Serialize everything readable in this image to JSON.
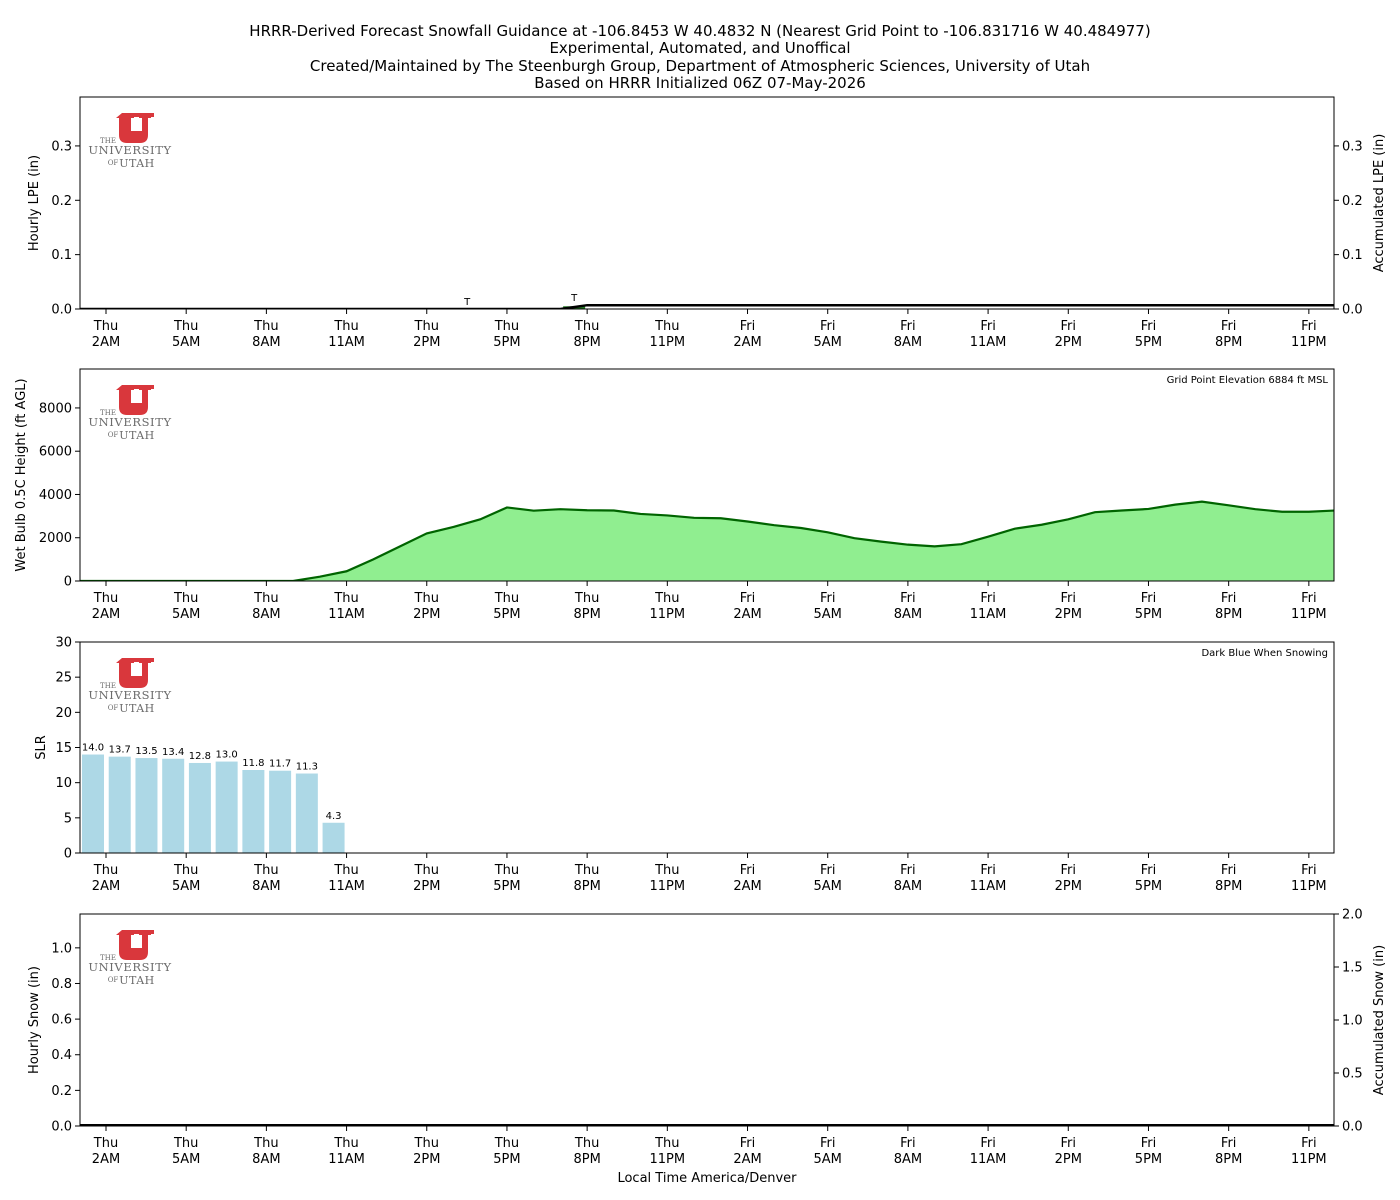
{
  "title": {
    "lines": [
      "HRRR-Derived Forecast Snowfall Guidance at -106.8453 W 40.4832 N (Nearest Grid Point to -106.831716 W 40.484977)",
      "Experimental, Automated, and Unoffical",
      "Created/Maintained by The Steenburgh Group, Department of Atmospheric Sciences, University of Utah",
      "Based on HRRR Initialized 06Z 07-May-2026"
    ]
  },
  "logo": {
    "the": "THE",
    "university": "UNIVERSITY",
    "of": "OF",
    "utah": "UTAH",
    "color": "#d9373c"
  },
  "xlabel": "Local Time America/Denver",
  "time_ticks": [
    {
      "day": "Thu",
      "time": "2AM"
    },
    {
      "day": "Thu",
      "time": "5AM"
    },
    {
      "day": "Thu",
      "time": "8AM"
    },
    {
      "day": "Thu",
      "time": "11AM"
    },
    {
      "day": "Thu",
      "time": "2PM"
    },
    {
      "day": "Thu",
      "time": "5PM"
    },
    {
      "day": "Thu",
      "time": "8PM"
    },
    {
      "day": "Thu",
      "time": "11PM"
    },
    {
      "day": "Fri",
      "time": "2AM"
    },
    {
      "day": "Fri",
      "time": "5AM"
    },
    {
      "day": "Fri",
      "time": "8AM"
    },
    {
      "day": "Fri",
      "time": "11AM"
    },
    {
      "day": "Fri",
      "time": "2PM"
    },
    {
      "day": "Fri",
      "time": "5PM"
    },
    {
      "day": "Fri",
      "time": "8PM"
    },
    {
      "day": "Fri",
      "time": "11PM"
    }
  ],
  "chart_data": [
    {
      "type": "bar",
      "ylabel": "Hourly LPE (in)",
      "y2label": "Accumulated LPE (in)",
      "ylim": [
        0,
        0.39
      ],
      "y2lim": [
        0,
        0.39
      ],
      "yticks": [
        "0.0",
        "0.1",
        "0.2",
        "0.3"
      ],
      "y2ticks": [
        "0.0",
        "0.1",
        "0.2",
        "0.3"
      ],
      "trace_markers": [
        {
          "hour": 14,
          "label": "T"
        },
        {
          "hour": 18,
          "label": "T"
        }
      ],
      "hourly_bar": {
        "hour": 18,
        "value": 0.005,
        "color": "#1f7a1f"
      },
      "accumulated": {
        "hours": [
          0,
          17,
          18,
          47
        ],
        "values": [
          0.0,
          0.0,
          0.007,
          0.007
        ],
        "color": "#000000"
      }
    },
    {
      "type": "area",
      "ylabel": "Wet Bulb 0.5C Height (ft AGL)",
      "ylim": [
        0,
        9800
      ],
      "yticks": [
        "0",
        "2000",
        "4000",
        "6000",
        "8000"
      ],
      "note": "Grid Point Elevation 6884 ft MSL",
      "fill_color": "#90ee90",
      "line_color": "#006400",
      "values": [
        0,
        0,
        0,
        0,
        0,
        0,
        0,
        0,
        200,
        450,
        1000,
        1600,
        2200,
        2500,
        2850,
        3400,
        3250,
        3320,
        3270,
        3260,
        3100,
        3030,
        2920,
        2900,
        2750,
        2580,
        2450,
        2250,
        1980,
        1820,
        1680,
        1600,
        1700,
        2050,
        2420,
        2600,
        2850,
        3180,
        3260,
        3330,
        3530,
        3670,
        3500,
        3320,
        3200,
        3200,
        3260,
        3200
      ]
    },
    {
      "type": "bar",
      "ylabel": "SLR",
      "ylim": [
        0,
        30
      ],
      "yticks": [
        "0",
        "5",
        "10",
        "15",
        "20",
        "25",
        "30"
      ],
      "note": "Dark Blue When Snowing",
      "bar_color": "#add8e6",
      "bars": [
        {
          "hour": 0,
          "value": 14.0,
          "label": "14.0"
        },
        {
          "hour": 1,
          "value": 13.7,
          "label": "13.7"
        },
        {
          "hour": 2,
          "value": 13.5,
          "label": "13.5"
        },
        {
          "hour": 3,
          "value": 13.4,
          "label": "13.4"
        },
        {
          "hour": 4,
          "value": 12.8,
          "label": "12.8"
        },
        {
          "hour": 5,
          "value": 13.0,
          "label": "13.0"
        },
        {
          "hour": 6,
          "value": 11.8,
          "label": "11.8"
        },
        {
          "hour": 7,
          "value": 11.7,
          "label": "11.7"
        },
        {
          "hour": 8,
          "value": 11.3,
          "label": "11.3"
        },
        {
          "hour": 9,
          "value": 4.3,
          "label": "4.3"
        }
      ]
    },
    {
      "type": "bar",
      "ylabel": "Hourly Snow (in)",
      "y2label": "Accumulated Snow (in)",
      "ylim": [
        0,
        1.19
      ],
      "y2lim": [
        0,
        2.0
      ],
      "yticks": [
        "0.0",
        "0.2",
        "0.4",
        "0.6",
        "0.8",
        "1.0"
      ],
      "y2ticks": [
        "0.0",
        "0.5",
        "1.0",
        "1.5",
        "2.0"
      ],
      "accumulated": {
        "hours": [
          0,
          47
        ],
        "values": [
          0.0,
          0.0
        ],
        "color": "#000000"
      }
    }
  ]
}
